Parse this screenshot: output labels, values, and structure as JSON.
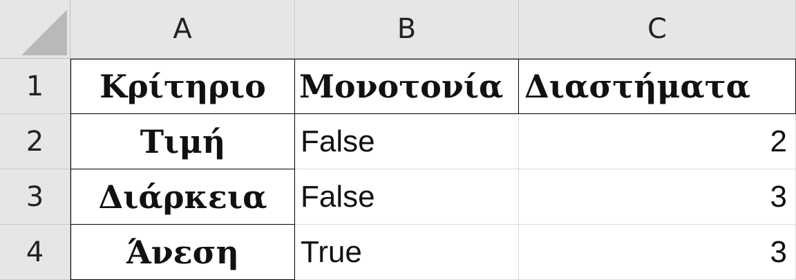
{
  "columns": [
    "A",
    "B",
    "C"
  ],
  "rows": [
    "1",
    "2",
    "3",
    "4"
  ],
  "table": {
    "headers": [
      "Κρίτηριο",
      "Μονοτονία",
      "Διαστήματα"
    ],
    "body": [
      [
        "Τιμή",
        "False",
        "2"
      ],
      [
        "Διάρκεια",
        "False",
        "3"
      ],
      [
        "Άνεση",
        "True",
        "3"
      ]
    ]
  }
}
